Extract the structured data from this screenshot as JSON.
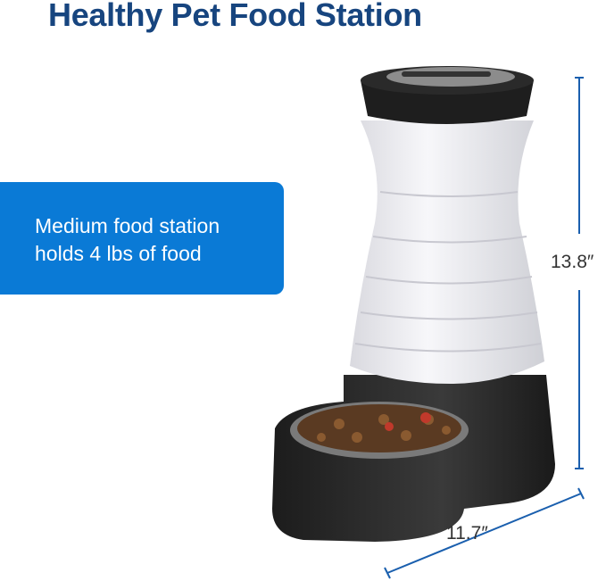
{
  "title": "Healthy Pet Food Station",
  "callout": {
    "line1": "Medium food station",
    "line2": "holds 4 lbs of food"
  },
  "dimensions": {
    "height": "13.8″",
    "width": "11.7″"
  },
  "colors": {
    "title": "#17457f",
    "callout": "#0a7ad6",
    "dimension_line": "#1a5fae"
  }
}
